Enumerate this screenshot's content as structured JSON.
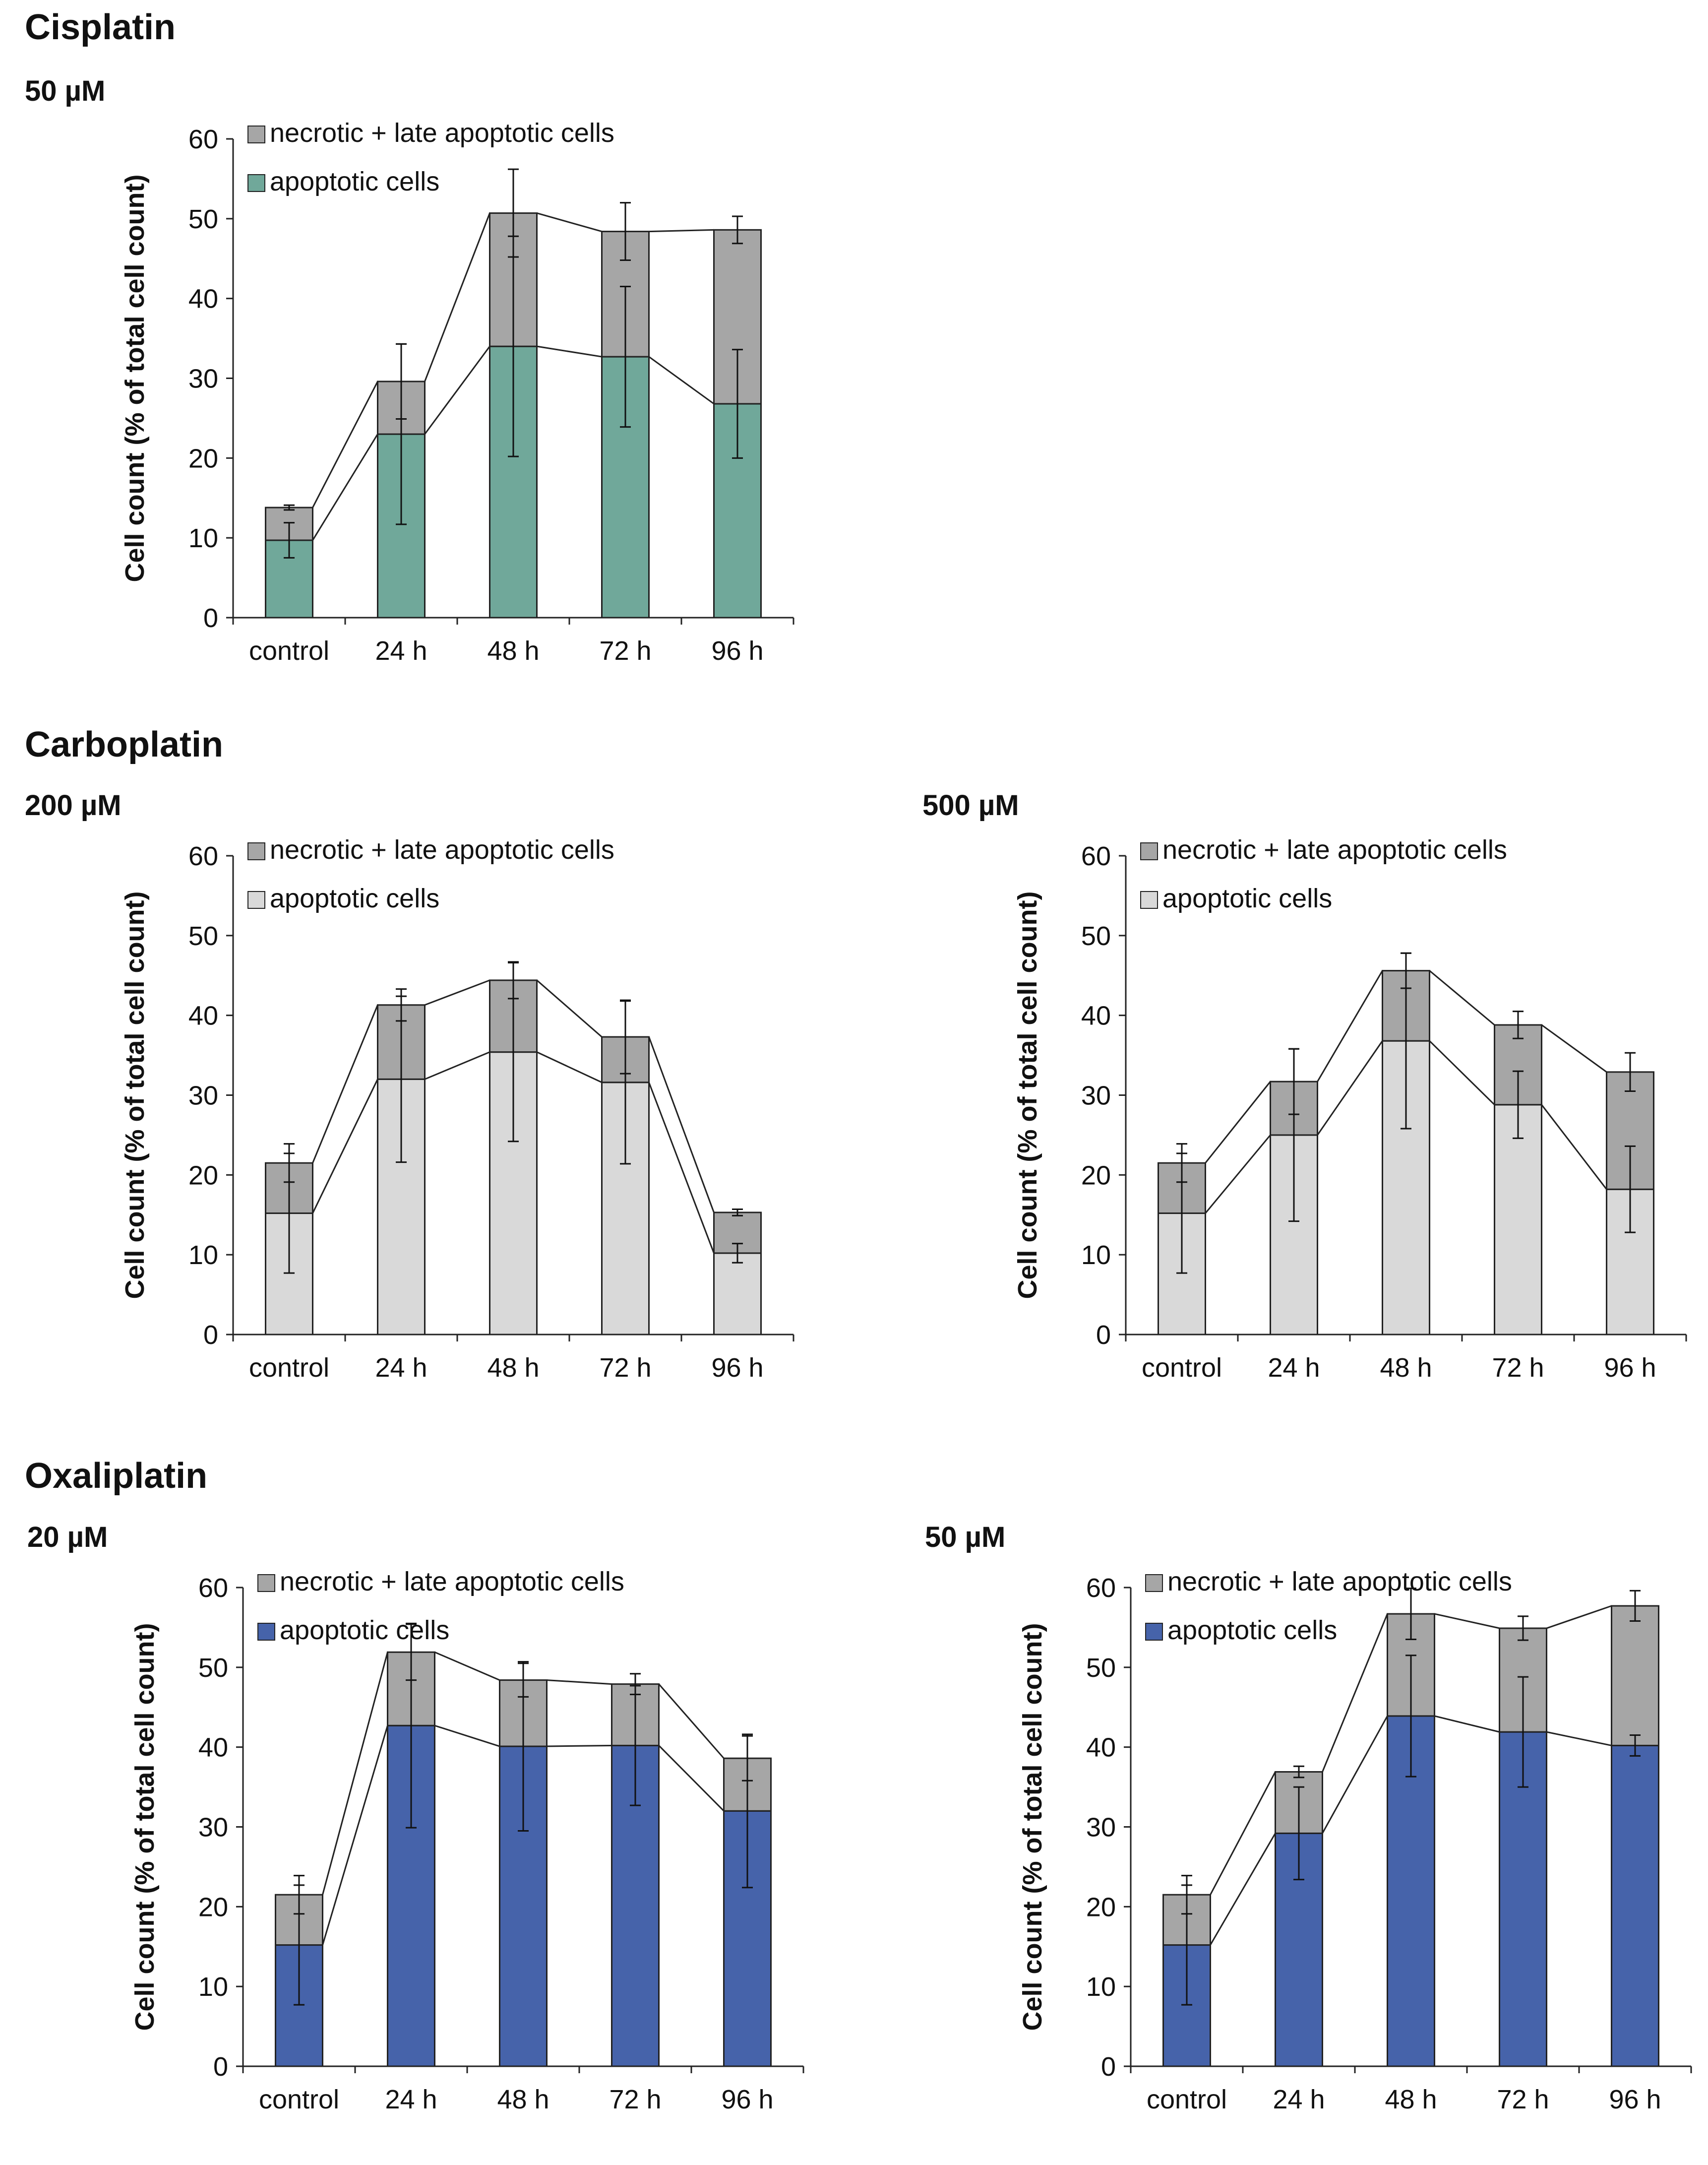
{
  "groups": {
    "cisplatin": "Cisplatin",
    "carboplatin": "Carboplatin",
    "oxaliplatin": "Oxaliplatin"
  },
  "chart_data": [
    {
      "id": "cis50",
      "type": "bar",
      "stacked": true,
      "drug": "Cisplatin",
      "subtitle": "50 µM",
      "ylabel": "Cell count (% of total cell count)",
      "xlabel": "",
      "ylim": [
        0,
        60
      ],
      "yticks": [
        0,
        10,
        20,
        30,
        40,
        50,
        60
      ],
      "categories": [
        "control",
        "24 h",
        "48 h",
        "72 h",
        "96 h"
      ],
      "legend_position": "top-left",
      "series": [
        {
          "name": "apoptotic cells",
          "color": "#70a89a",
          "values": [
            9.7,
            23,
            34,
            32.7,
            26.8
          ],
          "errors": [
            2.2,
            11.3,
            13.8,
            8.8,
            6.8
          ]
        },
        {
          "name": "necrotic + late apoptotic cells",
          "color": "#a6a6a6",
          "totals": [
            13.8,
            29.6,
            50.7,
            48.4,
            48.6
          ],
          "errors": [
            0.3,
            4.7,
            5.5,
            3.6,
            1.7
          ]
        }
      ],
      "connectors": true
    },
    {
      "id": "carbo200",
      "type": "bar",
      "stacked": true,
      "drug": "Carboplatin",
      "subtitle": "200 µM",
      "ylabel": "Cell count (% of total cell count)",
      "xlabel": "",
      "ylim": [
        0,
        60
      ],
      "yticks": [
        0,
        10,
        20,
        30,
        40,
        50,
        60
      ],
      "categories": [
        "control",
        "24 h",
        "48 h",
        "72 h",
        "96 h"
      ],
      "legend_position": "top-left",
      "series": [
        {
          "name": "apoptotic cells",
          "color": "#d9d9d9",
          "values": [
            15.2,
            32,
            35.4,
            31.6,
            10.2
          ],
          "errors": [
            7.5,
            10.4,
            11.2,
            10.2,
            1.2
          ]
        },
        {
          "name": "necrotic + late apoptotic cells",
          "color": "#a6a6a6",
          "totals": [
            21.5,
            41.3,
            44.4,
            37.3,
            15.3
          ],
          "errors": [
            2.4,
            2.0,
            2.3,
            4.6,
            0.4
          ]
        }
      ],
      "connectors": true
    },
    {
      "id": "carbo500",
      "type": "bar",
      "stacked": true,
      "drug": "Carboplatin",
      "subtitle": "500 µM",
      "ylabel": "Cell count (% of total cell count)",
      "xlabel": "",
      "ylim": [
        0,
        60
      ],
      "yticks": [
        0,
        10,
        20,
        30,
        40,
        50,
        60
      ],
      "categories": [
        "control",
        "24 h",
        "48 h",
        "72 h",
        "96 h"
      ],
      "legend_position": "top-left",
      "series": [
        {
          "name": "apoptotic cells",
          "color": "#d9d9d9",
          "values": [
            15.2,
            25,
            36.8,
            28.8,
            18.2
          ],
          "errors": [
            7.5,
            10.8,
            11.0,
            4.2,
            5.4
          ]
        },
        {
          "name": "necrotic + late apoptotic cells",
          "color": "#a6a6a6",
          "totals": [
            21.5,
            31.7,
            45.6,
            38.8,
            32.9
          ],
          "errors": [
            2.4,
            4.1,
            2.2,
            1.7,
            2.4
          ]
        }
      ],
      "connectors": true
    },
    {
      "id": "oxa20",
      "type": "bar",
      "stacked": true,
      "drug": "Oxaliplatin",
      "subtitle": "20 µM",
      "ylabel": "Cell count (% of total cell count)",
      "xlabel": "",
      "ylim": [
        0,
        60
      ],
      "yticks": [
        0,
        10,
        20,
        30,
        40,
        50,
        60
      ],
      "categories": [
        "control",
        "24 h",
        "48 h",
        "72 h",
        "96 h"
      ],
      "legend_position": "top-left",
      "series": [
        {
          "name": "apoptotic cells",
          "color": "#4663aa",
          "values": [
            15.2,
            42.7,
            40.1,
            40.2,
            32
          ],
          "errors": [
            7.5,
            12.8,
            10.6,
            7.5,
            9.6
          ]
        },
        {
          "name": "necrotic + late apoptotic cells",
          "color": "#a6a6a6",
          "totals": [
            21.5,
            51.9,
            48.4,
            47.9,
            38.6
          ],
          "errors": [
            2.4,
            3.5,
            2.1,
            1.3,
            2.8
          ]
        }
      ],
      "connectors": true
    },
    {
      "id": "oxa50",
      "type": "bar",
      "stacked": true,
      "drug": "Oxaliplatin",
      "subtitle": "50 µM",
      "ylabel": "Cell count (% of total cell count)",
      "xlabel": "",
      "ylim": [
        0,
        60
      ],
      "yticks": [
        0,
        10,
        20,
        30,
        40,
        50,
        60
      ],
      "categories": [
        "control",
        "24 h",
        "48 h",
        "72 h",
        "96 h"
      ],
      "legend_position": "top-left",
      "series": [
        {
          "name": "apoptotic cells",
          "color": "#4663aa",
          "values": [
            15.2,
            29.2,
            43.9,
            41.9,
            40.2
          ],
          "errors": [
            7.5,
            5.8,
            7.6,
            6.9,
            1.3
          ]
        },
        {
          "name": "necrotic + late apoptotic cells",
          "color": "#a6a6a6",
          "totals": [
            21.5,
            36.9,
            56.7,
            54.9,
            57.7
          ],
          "errors": [
            2.4,
            0.7,
            3.2,
            1.5,
            1.9
          ]
        }
      ],
      "connectors": true
    }
  ]
}
